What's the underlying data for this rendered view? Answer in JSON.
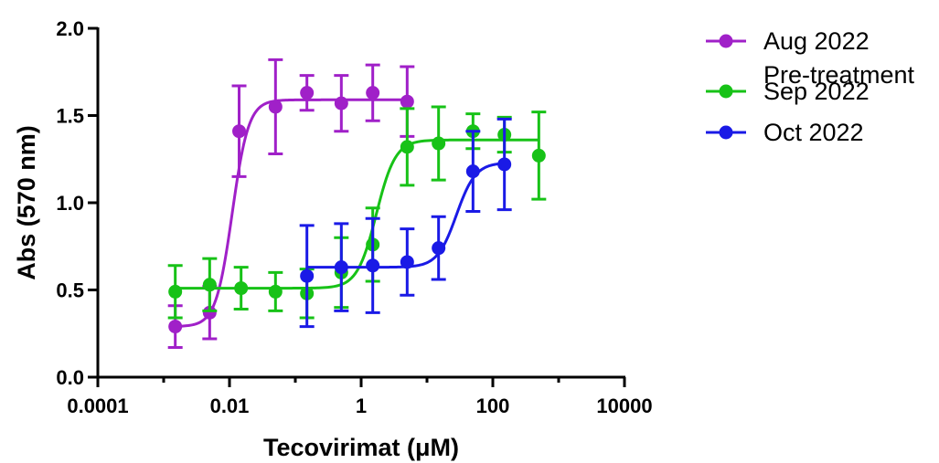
{
  "chart_data": {
    "type": "scatter",
    "title": "",
    "xlabel": "Tecovirimat (μM)",
    "ylabel": "Abs (570 nm)",
    "xscale": "log",
    "xlim": [
      0.0001,
      10000
    ],
    "ylim": [
      0,
      2.0
    ],
    "xticks": [
      0.0001,
      0.01,
      1,
      100,
      10000
    ],
    "xtick_labels": [
      "0.0001",
      "0.01",
      "1",
      "100",
      "10000"
    ],
    "yticks": [
      0,
      0.5,
      1,
      1.5,
      2
    ],
    "ytick_labels": [
      "0.0",
      "0.5",
      "1.0",
      "1.5",
      "2.0"
    ],
    "grid": false,
    "legend_position": "top-right",
    "fit": "sigmoidal dose-response curve",
    "series": [
      {
        "name_lines": [
          "Aug 2022",
          "Pre-treatment"
        ],
        "color": "#a020c8",
        "x": [
          0.0015,
          0.005,
          0.014,
          0.05,
          0.15,
          0.5,
          1.5,
          5
        ],
        "y": [
          0.29,
          0.37,
          1.41,
          1.55,
          1.63,
          1.57,
          1.63,
          1.58
        ],
        "err": [
          0.12,
          0.15,
          0.26,
          0.27,
          0.1,
          0.16,
          0.16,
          0.2
        ],
        "fit": {
          "bottom": 0.29,
          "top": 1.59,
          "ec50": 0.011,
          "hill": 3.5,
          "xmin": 0.0015,
          "xmax": 5
        }
      },
      {
        "name": "Sep 2022",
        "color": "#17c217",
        "x": [
          0.0015,
          0.005,
          0.015,
          0.05,
          0.15,
          0.5,
          1.5,
          5,
          15,
          50,
          150,
          500
        ],
        "y": [
          0.49,
          0.53,
          0.51,
          0.49,
          0.48,
          0.6,
          0.76,
          1.32,
          1.34,
          1.41,
          1.39,
          1.27
        ],
        "err": [
          0.15,
          0.15,
          0.12,
          0.11,
          0.14,
          0.2,
          0.21,
          0.22,
          0.21,
          0.1,
          0.1,
          0.25
        ],
        "fit": {
          "bottom": 0.51,
          "top": 1.36,
          "ec50": 1.7,
          "hill": 3.0,
          "xmin": 0.0015,
          "xmax": 500
        }
      },
      {
        "name": "Oct 2022",
        "color": "#1a1ae6",
        "x": [
          0.15,
          0.5,
          1.5,
          5,
          15,
          50,
          150
        ],
        "y": [
          0.58,
          0.63,
          0.64,
          0.66,
          0.74,
          1.18,
          1.22
        ],
        "err": [
          0.29,
          0.25,
          0.27,
          0.19,
          0.18,
          0.23,
          0.26
        ],
        "fit": {
          "bottom": 0.63,
          "top": 1.23,
          "ec50": 28,
          "hill": 3.0,
          "xmin": 0.15,
          "xmax": 150
        }
      }
    ]
  }
}
